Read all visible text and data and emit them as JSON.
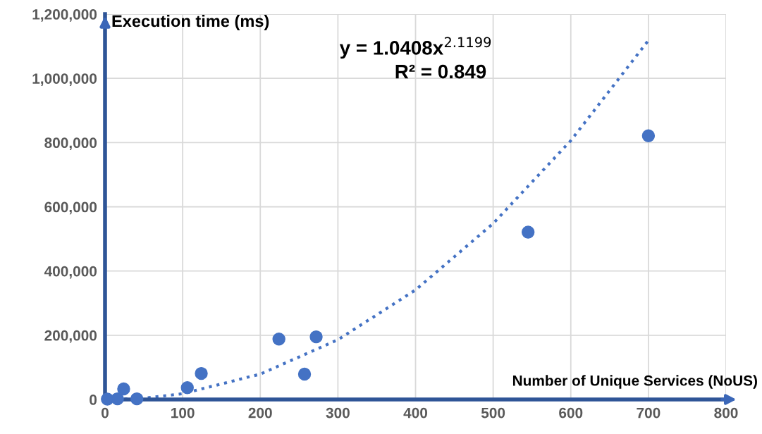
{
  "chart_data": {
    "type": "scatter",
    "xlabel": "Number of Unique Services (NoUS)",
    "ylabel": "Execution time (ms)",
    "xlim": [
      0,
      800
    ],
    "xticks": [
      0,
      100,
      200,
      300,
      400,
      500,
      600,
      700,
      800
    ],
    "ylim": [
      0,
      1200000
    ],
    "yticks": [
      {
        "value": 0,
        "label": "0"
      },
      {
        "value": 200000,
        "label": "200,000"
      },
      {
        "value": 400000,
        "label": "400,000"
      },
      {
        "value": 600000,
        "label": "600,000"
      },
      {
        "value": 800000,
        "label": "800,000"
      },
      {
        "value": 1000000,
        "label": "1,000,000"
      },
      {
        "value": 1200000,
        "label": "1,200,000"
      }
    ],
    "grid": true,
    "series": [
      {
        "type": "scatter",
        "marker": "circle",
        "color": "#4472c4",
        "x": [
          3,
          16,
          24,
          41,
          106,
          124,
          224,
          257,
          272,
          545,
          700
        ],
        "values": [
          1000,
          2000,
          33000,
          2000,
          37000,
          81000,
          188000,
          79000,
          195000,
          521000,
          821000
        ]
      },
      {
        "type": "line",
        "marker": "none",
        "line_style": "dotted",
        "color": "#4472c4",
        "x": [
          5,
          50,
          100,
          200,
          300,
          400,
          500,
          600,
          700
        ],
        "values": [
          0,
          4000,
          18000,
          79000,
          186000,
          341000,
          548000,
          806000,
          1118000
        ]
      }
    ],
    "annotations": [
      {
        "text": "y = 1.0408x$^{2.1199}$"
      },
      {
        "text": "R² = 0.849"
      }
    ]
  }
}
